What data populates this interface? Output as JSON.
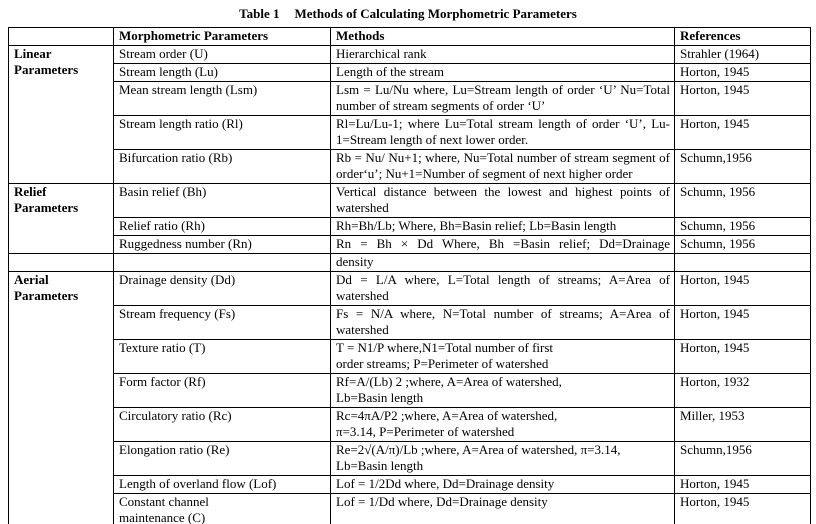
{
  "title": {
    "label": "Table 1",
    "text": "Methods of Calculating Morphometric Parameters"
  },
  "columns": {
    "parameter": "Morphometric Parameters",
    "methods": "Methods",
    "references": "References"
  },
  "sections": [
    {
      "group": "Linear\nParameters",
      "rows": [
        {
          "parameter": "Stream order (U)",
          "method": "Hierarchical rank",
          "reference": "Strahler (1964)"
        },
        {
          "parameter": "Stream length (Lu)",
          "method": "Length of the stream",
          "reference": "Horton, 1945"
        },
        {
          "parameter": "Mean stream length (Lsm)",
          "method": "Lsm = Lu/Nu where, Lu=Stream length of order ‘U’ Nu=Total number of stream segments of order ‘U’",
          "reference": "Horton, 1945",
          "justify": true
        },
        {
          "parameter": "Stream length ratio (Rl)",
          "method": "Rl=Lu/Lu-1; where Lu=Total stream length of order ‘U’, Lu-1=Stream length of next lower order.",
          "reference": "Horton, 1945",
          "justify": true
        },
        {
          "parameter": "Bifurcation ratio (Rb)",
          "method": "Rb = Nu/ Nu+1; where, Nu=Total number of stream segment of order‘u’; Nu+1=Number of segment of next higher order",
          "reference": "Schumn,1956",
          "justify": true
        }
      ]
    },
    {
      "group": "Relief\nParameters",
      "rows": [
        {
          "parameter": "Basin relief (Bh)",
          "method": "Vertical distance between the lowest and highest points of watershed",
          "reference": "Schumn, 1956",
          "justify": true
        },
        {
          "parameter": "Relief ratio (Rh)",
          "method": "Rh=Bh/Lb; Where, Bh=Basin relief; Lb=Basin length",
          "reference": "Schumn, 1956"
        },
        {
          "parameter": "Ruggedness number (Rn)",
          "method": "Rn = Bh × Dd  Where, Bh =Basin relief; Dd=Drainage",
          "reference": "Schumn, 1956",
          "stretch": true
        }
      ]
    },
    {
      "group": "",
      "rows": [
        {
          "parameter": "",
          "method": "density",
          "reference": ""
        }
      ]
    },
    {
      "group": "Aerial\nParameters",
      "rows": [
        {
          "parameter": "Drainage density (Dd)",
          "method": "Dd = L/A where, L=Total length of streams; A=Area of watershed",
          "reference": "Horton, 1945",
          "justify": true
        },
        {
          "parameter": "Stream frequency (Fs)",
          "method": "Fs = N/A where, N=Total number of streams; A=Area of watershed",
          "reference": "Horton, 1945",
          "justify": true
        },
        {
          "parameter": "Texture ratio (T)",
          "method": "T = N1/P where,N1=Total number of first\norder streams; P=Perimeter of watershed",
          "reference": "Horton, 1945"
        },
        {
          "parameter": "Form factor (Rf)",
          "method": "Rf=A/(Lb) 2 ;where, A=Area of watershed,\nLb=Basin length",
          "reference": "Horton, 1932"
        },
        {
          "parameter": "Circulatory ratio (Rc)",
          "method": "Rc=4πA/P2 ;where, A=Area of watershed,\nπ=3.14, P=Perimeter of watershed",
          "reference": "Miller, 1953"
        },
        {
          "parameter": "Elongation ratio (Re)",
          "method": "Re=2√(A/π)/Lb ;where, A=Area of watershed, π=3.14,\nLb=Basin length",
          "reference": "Schumn,1956"
        },
        {
          "parameter": "Length of overland flow (Lof)",
          "method": "Lof = 1/2Dd where, Dd=Drainage density",
          "reference": "Horton, 1945"
        },
        {
          "parameter": "Constant channel\nmaintenance (C)",
          "method": "Lof = 1/Dd where, Dd=Drainage density",
          "reference": "Horton, 1945"
        }
      ]
    }
  ]
}
